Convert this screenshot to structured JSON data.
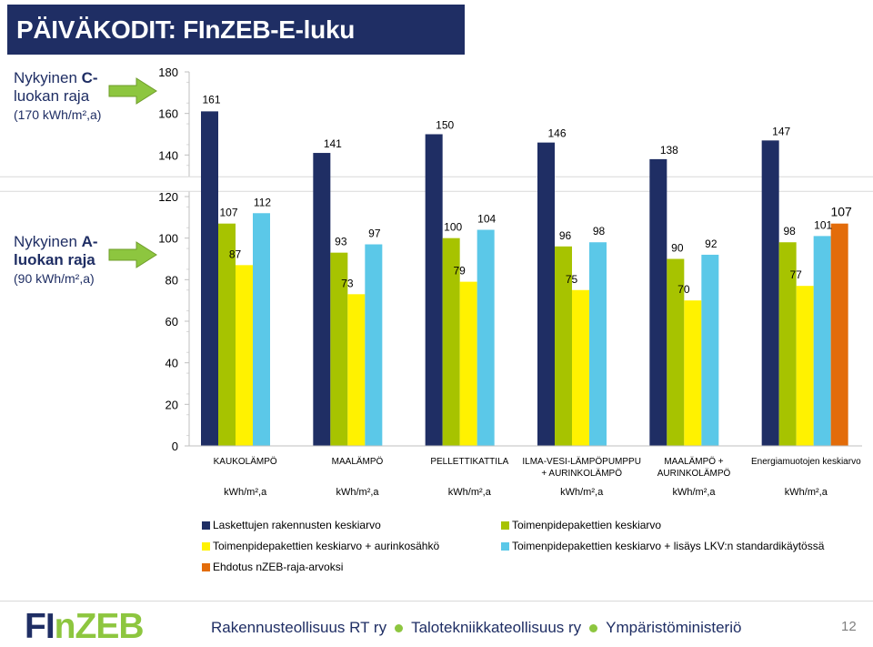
{
  "title": "PÄIVÄKODIT: FInZEB-E-luku",
  "notes": {
    "c": {
      "line1_pre": "Nykyinen ",
      "line1_hl": "C-",
      "line2": "luokan raja",
      "sub": "(170 kWh/m²,a)"
    },
    "a": {
      "line1_pre": "Nykyinen ",
      "line1_hl": "A-",
      "line2": "luokan raja",
      "sub": "(90 kWh/m²,a)"
    }
  },
  "colors": {
    "navy": "#1f2e64",
    "olive": "#a7c300",
    "yellow": "#fff200",
    "cyan": "#5bc8e8",
    "orange": "#e36c0a",
    "arrow": "#8dc63f"
  },
  "chart_data": {
    "type": "bar",
    "categories": [
      "KAUKOLÄMPÖ",
      "MAALÄMPÖ",
      "PELLETTIKATTILA",
      "ILMA-VESI-LÄMPÖPUMPPU + AURINKOLÄMPÖ",
      "MAALÄMPÖ + AURINKOLÄMPÖ",
      "Energiamuotojen keskiarvo"
    ],
    "category_lines": [
      [
        "KAUKOLÄMPÖ"
      ],
      [
        "MAALÄMPÖ"
      ],
      [
        "PELLETTIKATTILA"
      ],
      [
        "ILMA-VESI-LÄMPÖPUMPPU",
        "+ AURINKOLÄMPÖ"
      ],
      [
        "MAALÄMPÖ +",
        "AURINKOLÄMPÖ"
      ],
      [
        "Energiamuotojen keskiarvo"
      ]
    ],
    "unit_label": "kWh/m²,a",
    "series": [
      {
        "name": "Laskettujen rakennusten keskiarvo",
        "color": "#1f2e64",
        "values": [
          161,
          141,
          150,
          146,
          138,
          147
        ]
      },
      {
        "name": "Toimenpidepakettien keskiarvo",
        "color": "#a7c300",
        "values": [
          107,
          93,
          100,
          96,
          90,
          98
        ]
      },
      {
        "name": "Toimenpidepakettien keskiarvo + aurinkosähkö",
        "color": "#fff200",
        "values": [
          87,
          73,
          79,
          75,
          70,
          77
        ]
      },
      {
        "name": "Toimenpidepakettien keskiarvo + lisäys LKV:n standardikäytössä",
        "color": "#5bc8e8",
        "values": [
          112,
          97,
          104,
          98,
          92,
          101
        ]
      },
      {
        "name": "Ehdotus nZEB-raja-arvoksi",
        "color": "#e36c0a",
        "values": [
          null,
          null,
          null,
          null,
          null,
          107
        ]
      }
    ],
    "ylim": [
      0,
      180
    ],
    "y_ticks": [
      0,
      20,
      40,
      60,
      80,
      100,
      120,
      140,
      160,
      180
    ],
    "y_axis_break": true,
    "legend_position": "bottom"
  },
  "footer": {
    "logo_left": "FI",
    "logo_right": "nZEB",
    "org1": "Rakennusteollisuus RT ry",
    "org2": "Talotekniikkateollisuus ry",
    "org3": "Ympäristöministeriö",
    "page": "12"
  }
}
